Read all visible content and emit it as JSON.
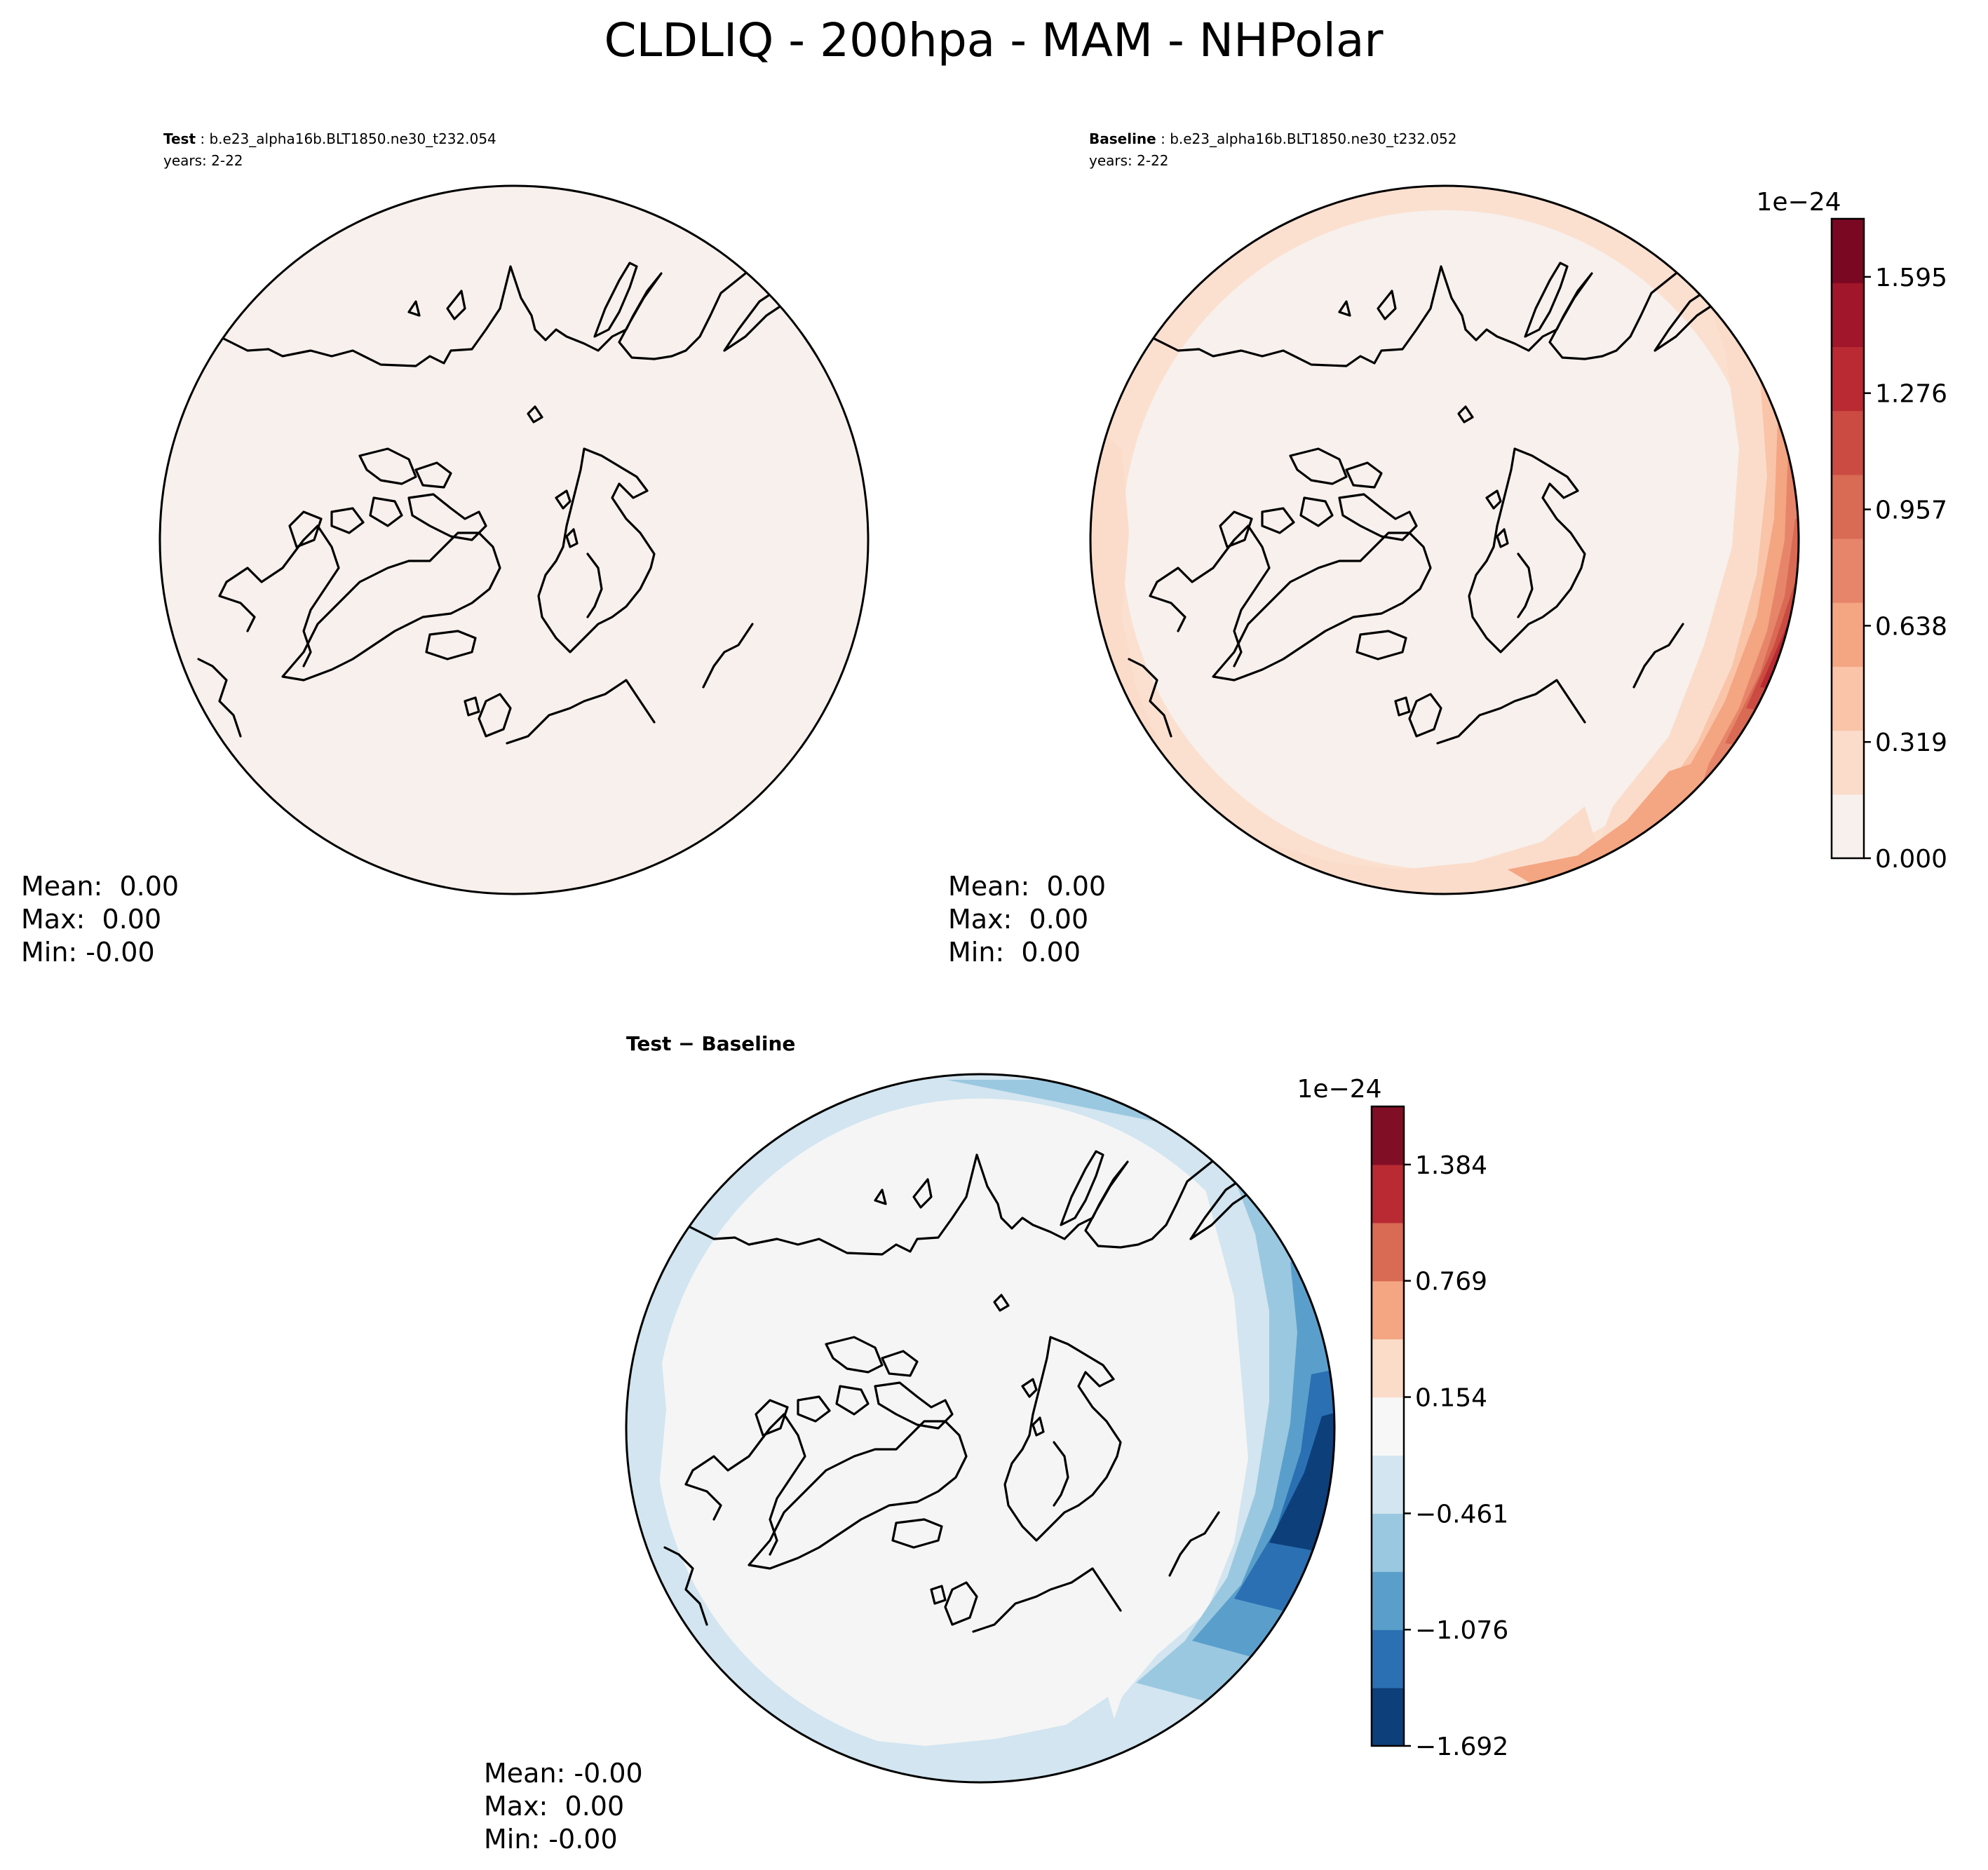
{
  "figure": {
    "title": "CLDLIQ - 200hpa - MAM - NHPolar"
  },
  "panels": [
    {
      "id": "test",
      "label": "Test",
      "case": "b.e23_alpha16b.BLT1850.ne30_t232.054",
      "years": "years: 2-22",
      "stats": {
        "mean": "Mean:  0.00",
        "max": "Max:  0.00",
        "min": "Min: -0.00"
      }
    },
    {
      "id": "baseline",
      "label": "Baseline",
      "case": "b.e23_alpha16b.BLT1850.ne30_t232.052",
      "years": "years: 2-22",
      "stats": {
        "mean": "Mean:  0.00",
        "max": "Max:  0.00",
        "min": "Min:  0.00"
      }
    },
    {
      "id": "diff",
      "label": "Test − Baseline",
      "stats": {
        "mean": "Mean: -0.00",
        "max": "Max:  0.00",
        "min": "Min: -0.00"
      }
    }
  ],
  "colorbars": {
    "baseline": {
      "exponent": "1e−24",
      "ticks": [
        "0.000",
        "0.319",
        "0.638",
        "0.957",
        "1.276",
        "1.595"
      ],
      "colors": [
        "#f7f0ec",
        "#fbdcca",
        "#f9c4a8",
        "#f4a582",
        "#e7856a",
        "#d96a54",
        "#cb4b42",
        "#b92a33",
        "#a1162a",
        "#7a0822"
      ]
    },
    "diff": {
      "exponent": "1e−24",
      "ticks": [
        "−1.692",
        "−1.076",
        "−0.461",
        "0.154",
        "0.769",
        "1.384"
      ],
      "colors": [
        "#0d3f7a",
        "#2b70b2",
        "#5a9fcb",
        "#9ac8e0",
        "#d2e5f0",
        "#f7f7f7",
        "#fbdcc9",
        "#f4a582",
        "#d96a54",
        "#b92a33",
        "#800f26"
      ]
    }
  },
  "colors": {
    "test_fill": "#f7f0ec",
    "diff_background": "#f5f5f5",
    "land_outline": "#000000"
  }
}
